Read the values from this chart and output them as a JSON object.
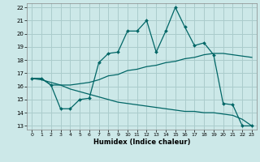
{
  "xlabel": "Humidex (Indice chaleur)",
  "background_color": "#cce8e8",
  "grid_color": "#aacccc",
  "line_color": "#006666",
  "xlim": [
    -0.5,
    23.5
  ],
  "ylim": [
    12.7,
    22.3
  ],
  "xticks": [
    0,
    1,
    2,
    3,
    4,
    5,
    6,
    7,
    8,
    9,
    10,
    11,
    12,
    13,
    14,
    15,
    16,
    17,
    18,
    19,
    20,
    21,
    22,
    23
  ],
  "yticks": [
    13,
    14,
    15,
    16,
    17,
    18,
    19,
    20,
    21,
    22
  ],
  "line1_x": [
    0,
    1,
    2,
    3,
    4,
    5,
    6,
    7,
    8,
    9,
    10,
    11,
    12,
    13,
    14,
    15,
    16,
    17,
    18,
    19,
    20,
    21,
    22,
    23
  ],
  "line1_y": [
    16.6,
    16.6,
    16.1,
    14.3,
    14.3,
    15.0,
    15.1,
    17.8,
    18.5,
    18.6,
    20.2,
    20.2,
    21.0,
    18.6,
    20.2,
    22.0,
    20.5,
    19.1,
    19.3,
    18.4,
    14.7,
    14.6,
    13.0,
    13.0
  ],
  "line2_x": [
    0,
    1,
    2,
    3,
    4,
    5,
    6,
    7,
    8,
    9,
    10,
    11,
    12,
    13,
    14,
    15,
    16,
    17,
    18,
    19,
    20,
    21,
    22,
    23
  ],
  "line2_y": [
    16.6,
    16.6,
    16.1,
    16.1,
    16.1,
    16.2,
    16.3,
    16.5,
    16.8,
    16.9,
    17.2,
    17.3,
    17.5,
    17.6,
    17.8,
    17.9,
    18.1,
    18.2,
    18.4,
    18.5,
    18.5,
    18.4,
    18.3,
    18.2
  ],
  "line3_x": [
    0,
    1,
    2,
    3,
    4,
    5,
    6,
    7,
    8,
    9,
    10,
    11,
    12,
    13,
    14,
    15,
    16,
    17,
    18,
    19,
    20,
    21,
    22,
    23
  ],
  "line3_y": [
    16.6,
    16.5,
    16.3,
    16.1,
    15.8,
    15.6,
    15.4,
    15.2,
    15.0,
    14.8,
    14.7,
    14.6,
    14.5,
    14.4,
    14.3,
    14.2,
    14.1,
    14.1,
    14.0,
    14.0,
    13.9,
    13.8,
    13.5,
    13.0
  ]
}
